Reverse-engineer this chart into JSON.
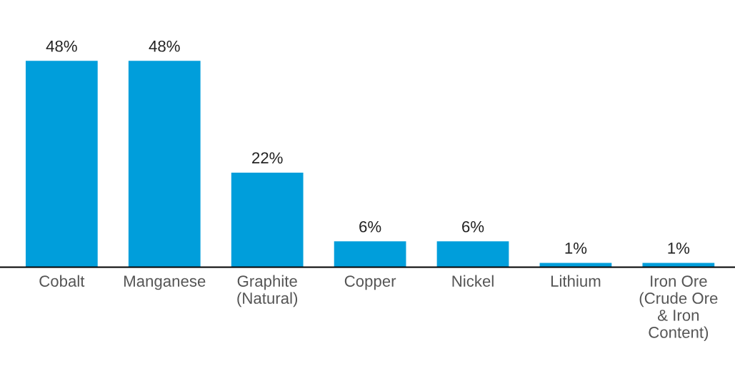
{
  "chart_data": {
    "type": "bar",
    "categories": [
      "Cobalt",
      "Manganese",
      "Graphite\n(Natural)",
      "Copper",
      "Nickel",
      "Lithium",
      "Iron Ore\n(Crude Ore\n& Iron\nContent)"
    ],
    "values": [
      48,
      48,
      22,
      6,
      6,
      1,
      1
    ],
    "value_labels": [
      "48%",
      "48%",
      "22%",
      "6%",
      "6%",
      "1%",
      "1%"
    ],
    "color": "#009edb",
    "grid": false,
    "legend": false
  }
}
